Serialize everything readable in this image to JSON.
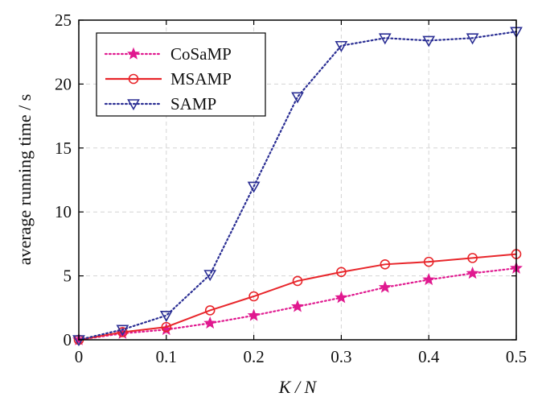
{
  "chart_data": {
    "type": "line",
    "title": "",
    "xlabel": "K / N",
    "ylabel": "average running time / s",
    "xlim": [
      0,
      0.5
    ],
    "ylim": [
      0,
      25
    ],
    "x": [
      0,
      0.05,
      0.1,
      0.15,
      0.2,
      0.25,
      0.3,
      0.35,
      0.4,
      0.45,
      0.5
    ],
    "x_ticks": [
      "0",
      "0.1",
      "0.2",
      "0.3",
      "0.4",
      "0.5"
    ],
    "y_ticks": [
      "0",
      "5",
      "10",
      "15",
      "20",
      "25"
    ],
    "grid": "dashed",
    "legend_position": "top-left",
    "series": [
      {
        "name": "CoSaMP",
        "color": "#e0198f",
        "line_style": "dotted",
        "marker": "star",
        "values": [
          0.0,
          0.5,
          0.8,
          1.3,
          1.9,
          2.6,
          3.3,
          4.1,
          4.7,
          5.2,
          5.6
        ]
      },
      {
        "name": "MSAMP",
        "color": "#e8262b",
        "line_style": "solid",
        "marker": "circle",
        "values": [
          0.0,
          0.6,
          1.0,
          2.3,
          3.4,
          4.6,
          5.3,
          5.9,
          6.1,
          6.4,
          6.7
        ]
      },
      {
        "name": "SAMP",
        "color": "#2b2f94",
        "line_style": "dotted",
        "marker": "triangle-down",
        "values": [
          0.0,
          0.8,
          1.9,
          5.1,
          12.0,
          19.0,
          23.0,
          23.6,
          23.4,
          23.6,
          24.1
        ]
      }
    ]
  }
}
